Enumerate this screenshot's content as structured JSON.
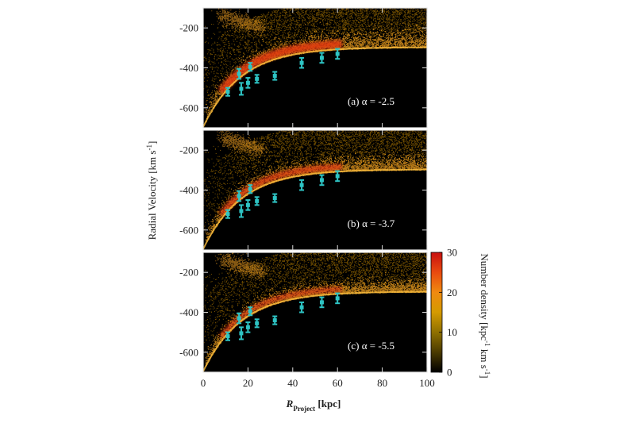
{
  "chart_data": {
    "type": "scatter",
    "xlabel_main": "R",
    "xlabel_sub": "Project",
    "xlabel_unit": "[kpc]",
    "ylabel": "Radial Velocity [km s",
    "ylabel_sup": "-1",
    "ylabel_close": "]",
    "xlim": [
      0,
      100
    ],
    "ylim": [
      -700,
      -100
    ],
    "xticks": [
      "0",
      "20",
      "40",
      "60",
      "80",
      "100"
    ],
    "xtick_values": [
      0,
      20,
      40,
      60,
      80,
      100
    ],
    "yticks": [
      "-200",
      "-400",
      "-600"
    ],
    "ytick_values": [
      -200,
      -400,
      -600
    ],
    "colorbar": {
      "label": "Number density [kpc",
      "label_sup1": "-1",
      "label_mid": " km s",
      "label_sup2": "-1",
      "label_close": "]",
      "range": [
        0,
        30
      ],
      "ticks": [
        "0",
        "10",
        "20",
        "30"
      ],
      "tick_values": [
        0,
        10,
        20,
        30
      ],
      "colors": [
        "#000000",
        "#4a3a00",
        "#8f7000",
        "#d49a00",
        "#f08a10",
        "#e84a10",
        "#c81010"
      ]
    },
    "panels": [
      {
        "label": "(a) α = -2.5",
        "alpha": -2.5,
        "peak_density": 30
      },
      {
        "label": "(b) α = -3.7",
        "alpha": -3.7,
        "peak_density": 22
      },
      {
        "label": "(c) α = -5.5",
        "alpha": -5.5,
        "peak_density": 18
      }
    ],
    "observations": {
      "name": "observed",
      "color": "#2ec4c4",
      "points": [
        {
          "x": 11,
          "y": -520,
          "err": 20
        },
        {
          "x": 16,
          "y": -430,
          "err": 25
        },
        {
          "x": 17,
          "y": -505,
          "err": 30
        },
        {
          "x": 20,
          "y": -475,
          "err": 25
        },
        {
          "x": 21,
          "y": -395,
          "err": 20
        },
        {
          "x": 24,
          "y": -455,
          "err": 20
        },
        {
          "x": 32,
          "y": -440,
          "err": 20
        },
        {
          "x": 44,
          "y": -375,
          "err": 25
        },
        {
          "x": 53,
          "y": -350,
          "err": 25
        },
        {
          "x": 60,
          "y": -330,
          "err": 25
        }
      ]
    }
  }
}
